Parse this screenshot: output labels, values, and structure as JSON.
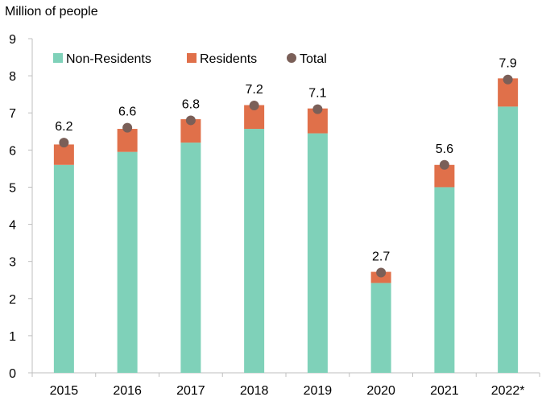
{
  "chart_data": {
    "type": "bar",
    "stacked": true,
    "ylabel": "Million of people",
    "ylim": [
      0,
      9
    ],
    "yticks": [
      0,
      1,
      2,
      3,
      4,
      5,
      6,
      7,
      8,
      9
    ],
    "categories": [
      "2015",
      "2016",
      "2017",
      "2018",
      "2019",
      "2020",
      "2021",
      "2022*"
    ],
    "series": [
      {
        "name": "Non-Residents",
        "type": "bar",
        "color": "#7fd1b9",
        "values": [
          5.6,
          5.95,
          6.2,
          6.57,
          6.45,
          2.42,
          5.0,
          7.17
        ]
      },
      {
        "name": "Residents",
        "type": "bar",
        "color": "#e0704a",
        "values": [
          0.55,
          0.62,
          0.63,
          0.64,
          0.67,
          0.3,
          0.6,
          0.76
        ]
      },
      {
        "name": "Total",
        "type": "scatter",
        "color": "#7a5f58",
        "values": [
          6.2,
          6.6,
          6.8,
          7.2,
          7.1,
          2.7,
          5.6,
          7.9
        ]
      }
    ],
    "data_labels": [
      "6.2",
      "6.6",
      "6.8",
      "7.2",
      "7.1",
      "2.7",
      "5.6",
      "7.9"
    ],
    "legend": {
      "position": "top-left",
      "entries": [
        "Non-Residents",
        "Residents",
        "Total"
      ]
    },
    "grid": false
  }
}
